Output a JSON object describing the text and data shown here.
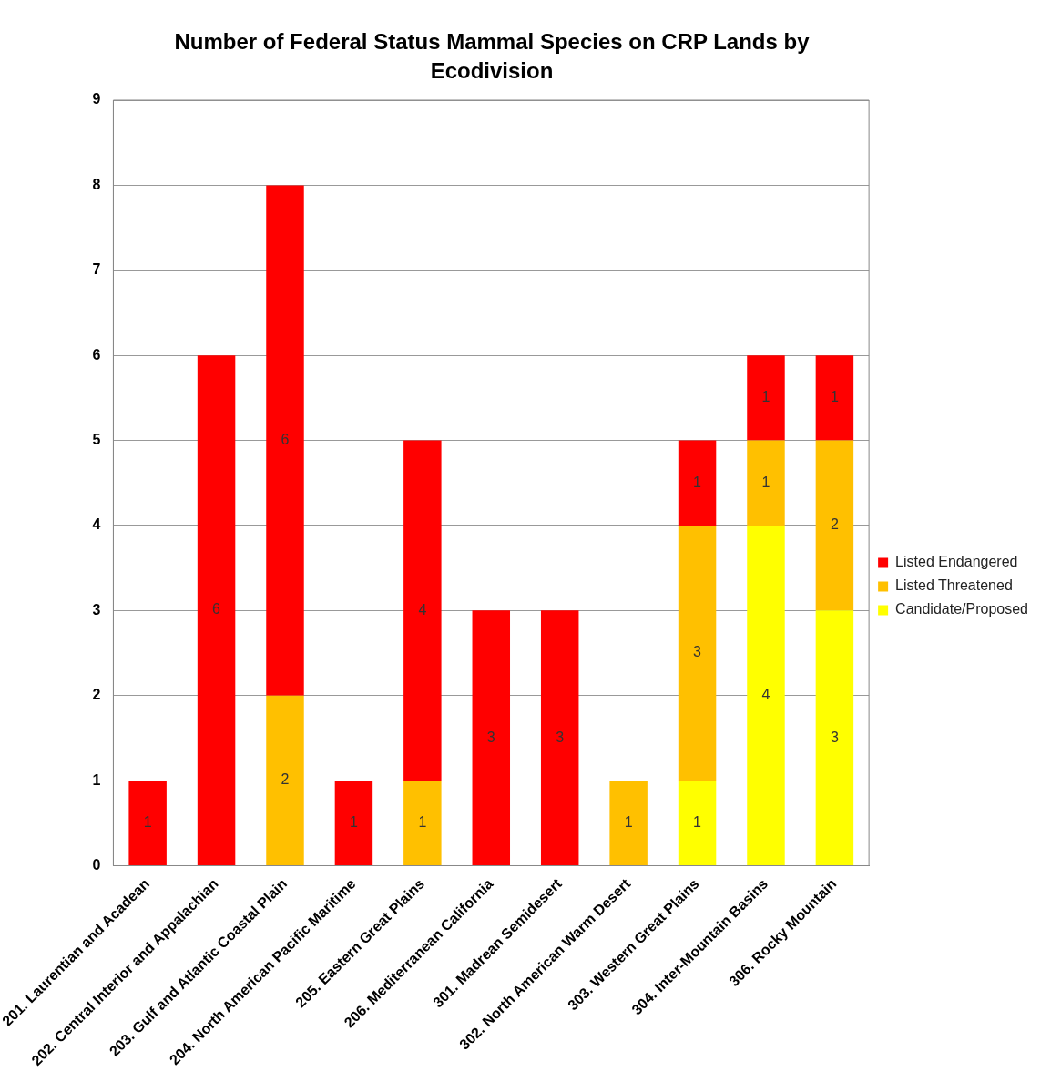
{
  "chart_data": {
    "type": "bar",
    "title": "Number of Federal Status Mammal Species on CRP Lands by Ecodivision",
    "categories": [
      "201. Laurentian and Acadean",
      "202. Central Interior and Appalachian",
      "203. Gulf and Atlantic Coastal Plain",
      "204. North American Pacific Maritime",
      "205. Eastern Great Plains",
      "206. Mediterranean California",
      "301. Madrean Semidesert",
      "302. North American Warm Desert",
      "303. Western Great Plains",
      "304. Inter-Mountain Basins",
      "306. Rocky Mountain"
    ],
    "series": [
      {
        "name": "Candidate/Proposed",
        "color": "#ffff00",
        "values": [
          null,
          null,
          null,
          null,
          null,
          null,
          null,
          null,
          1,
          4,
          3
        ]
      },
      {
        "name": "Listed Threatened",
        "color": "#ffc000",
        "values": [
          null,
          null,
          2,
          null,
          1,
          null,
          null,
          1,
          3,
          1,
          2
        ]
      },
      {
        "name": "Listed Endangered",
        "color": "#ff0000",
        "values": [
          1,
          6,
          6,
          1,
          4,
          3,
          3,
          null,
          1,
          1,
          1
        ]
      }
    ],
    "stacked": true,
    "ylim": [
      0,
      9
    ],
    "yticks": [
      0,
      1,
      2,
      3,
      4,
      5,
      6,
      7,
      8,
      9
    ],
    "grid": "y",
    "legend": "right",
    "data_labels": true
  }
}
